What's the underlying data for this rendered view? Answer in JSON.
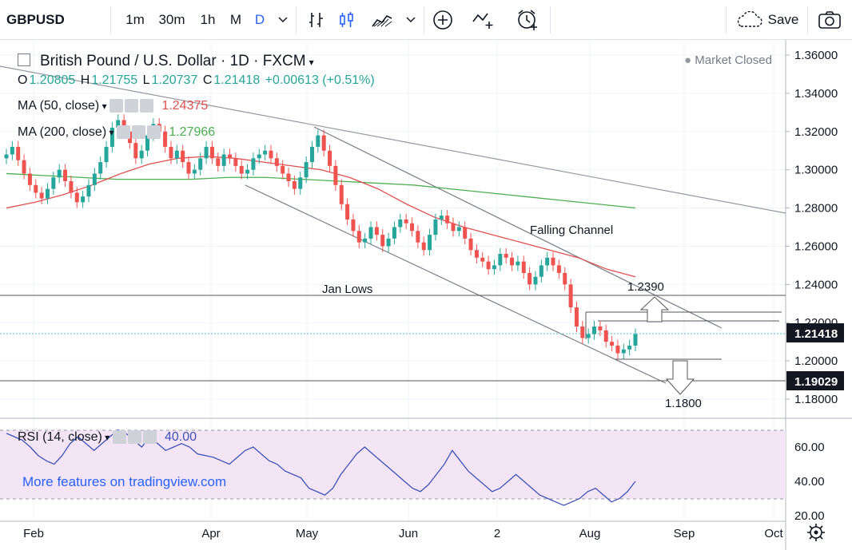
{
  "toolbar": {
    "symbol": "GBPUSD",
    "intervals": [
      "1m",
      "30m",
      "1h",
      "M",
      "D"
    ],
    "active_interval": "D",
    "save_label": "Save"
  },
  "header": {
    "title": "British Pound / U.S. Dollar · 1D · FXCM",
    "market_status": "Market Closed",
    "ohlc": {
      "o_label": "O",
      "o": "1.20805",
      "h_label": "H",
      "h": "1.21755",
      "l_label": "L",
      "l": "1.20737",
      "c_label": "C",
      "c": "1.21418",
      "change": "+0.00613 (+0.51%)"
    },
    "ma50_label": "MA (50, close)",
    "ma50_value": "1.24375",
    "ma200_label": "MA (200, close)",
    "ma200_value": "1.27966",
    "rsi_label": "RSI (14, close)",
    "rsi_value": "40.00"
  },
  "annotations": {
    "falling_channel": "Falling Channel",
    "jan_lows": "Jan Lows",
    "target_up": "1.2390",
    "target_down": "1.1800"
  },
  "watermark": "More features on tradingview.com",
  "colors": {
    "up": "#26a69a",
    "down": "#ef5350",
    "ma50": "#e05050",
    "ma200": "#4caf50",
    "rsi": "#3f51b5",
    "rsi_band": "#f3e5f5",
    "price_badge": "#131722",
    "accent": "#2962ff"
  },
  "chart_data": {
    "type": "candlestick",
    "price_axis_ticks": [
      "1.36000",
      "1.34000",
      "1.32000",
      "1.30000",
      "1.28000",
      "1.26000",
      "1.24000",
      "1.22000",
      "1.20000",
      "1.18000"
    ],
    "last_price_label": "1.21418",
    "level_label": "1.19029",
    "x_tick_labels": [
      "Feb",
      "Apr",
      "May",
      "Jun",
      "2",
      "Aug",
      "Sep",
      "Oct"
    ],
    "rsi_axis_ticks": [
      "60.00",
      "40.00",
      "20.00"
    ],
    "candles_daily_close_approx": [
      1.308,
      1.312,
      1.305,
      1.298,
      1.292,
      1.288,
      1.285,
      1.29,
      1.296,
      1.3,
      1.294,
      1.288,
      1.283,
      1.286,
      1.292,
      1.298,
      1.304,
      1.312,
      1.322,
      1.326,
      1.32,
      1.314,
      1.306,
      1.31,
      1.318,
      1.324,
      1.32,
      1.312,
      1.306,
      1.31,
      1.304,
      1.298,
      1.3,
      1.306,
      1.312,
      1.306,
      1.302,
      1.308,
      1.306,
      1.302,
      1.298,
      1.3,
      1.306,
      1.308,
      1.31,
      1.306,
      1.302,
      1.298,
      1.294,
      1.29,
      1.296,
      1.304,
      1.312,
      1.318,
      1.31,
      1.302,
      1.292,
      1.282,
      1.274,
      1.268,
      1.262,
      1.264,
      1.27,
      1.266,
      1.26,
      1.264,
      1.27,
      1.274,
      1.272,
      1.268,
      1.262,
      1.258,
      1.266,
      1.274,
      1.276,
      1.272,
      1.268,
      1.27,
      1.264,
      1.258,
      1.254,
      1.252,
      1.248,
      1.25,
      1.256,
      1.254,
      1.25,
      1.252,
      1.246,
      1.24,
      1.244,
      1.25,
      1.254,
      1.25,
      1.246,
      1.24,
      1.228,
      1.218,
      1.212,
      1.214,
      1.218,
      1.216,
      1.21,
      1.208,
      1.204,
      1.206,
      1.208,
      1.214
    ],
    "ma50_values_approx": [
      1.28,
      1.283,
      1.287,
      1.292,
      1.298,
      1.303,
      1.306,
      1.307,
      1.306,
      1.304,
      1.302,
      1.3,
      1.296,
      1.29,
      1.282,
      1.275,
      1.27,
      1.266,
      1.262,
      1.258,
      1.254,
      1.248,
      1.244
    ],
    "ma200_values_approx": [
      1.298,
      1.297,
      1.296,
      1.295,
      1.295,
      1.295,
      1.296,
      1.296,
      1.295,
      1.294,
      1.293,
      1.292,
      1.29,
      1.288,
      1.286,
      1.284,
      1.282,
      1.28
    ],
    "rsi_values_approx": [
      68,
      66,
      64,
      60,
      55,
      52,
      50,
      55,
      62,
      66,
      62,
      58,
      62,
      66,
      70,
      68,
      64,
      60,
      66,
      62,
      58,
      60,
      62,
      60,
      56,
      55,
      54,
      52,
      50,
      54,
      58,
      60,
      56,
      52,
      50,
      46,
      44,
      42,
      36,
      34,
      32,
      36,
      44,
      50,
      56,
      60,
      56,
      52,
      48,
      44,
      40,
      36,
      34,
      38,
      44,
      50,
      58,
      52,
      46,
      42,
      38,
      34,
      36,
      40,
      44,
      40,
      36,
      32,
      30,
      28,
      26,
      28,
      30,
      34,
      36,
      32,
      28,
      30,
      34,
      40
    ]
  }
}
